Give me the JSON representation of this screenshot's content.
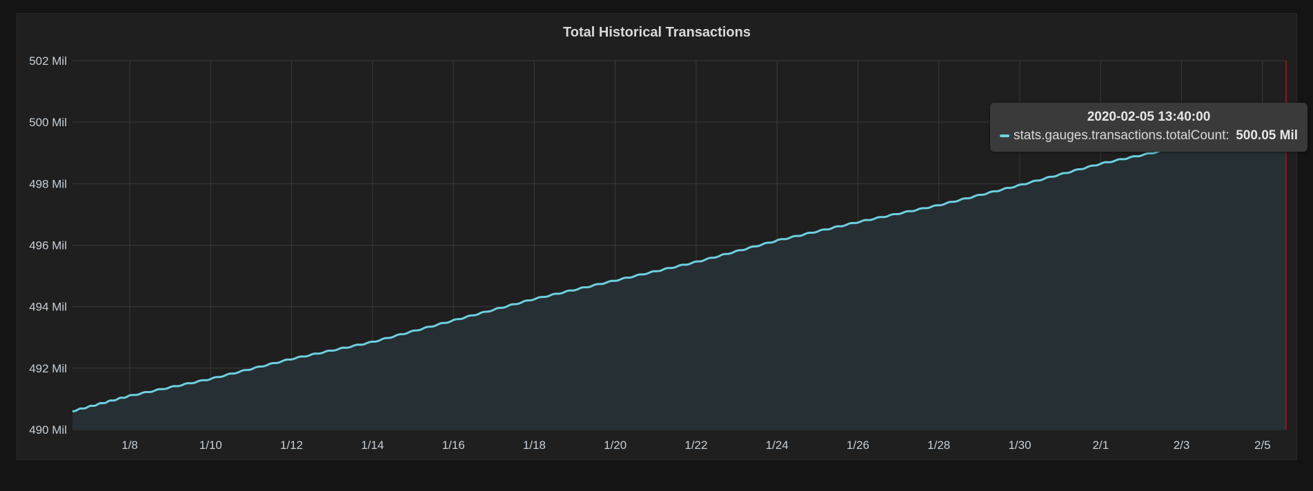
{
  "panel": {
    "title": "Total Historical Transactions"
  },
  "tooltip": {
    "time": "2020-02-05 13:40:00",
    "series": "stats.gauges.transactions.totalCount:",
    "value": "500.05 Mil"
  },
  "colors": {
    "series_line": "#6ed0e0",
    "series_fill": "#262f33",
    "grid": "#3a3a3a",
    "axis_text": "#c7d0d9",
    "time_marker": "#8b1a1a"
  },
  "chart_data": {
    "type": "area",
    "title": "Total Historical Transactions",
    "xlabel": "",
    "ylabel": "",
    "x_range": [
      "2020-01-06 14:00",
      "2020-02-05 14:00"
    ],
    "ylim": [
      490,
      502
    ],
    "y_unit": "Mil",
    "y_ticks": [
      490,
      492,
      494,
      496,
      498,
      500,
      502
    ],
    "y_tick_labels": [
      "490 Mil",
      "492 Mil",
      "494 Mil",
      "496 Mil",
      "498 Mil",
      "500 Mil",
      "502 Mil"
    ],
    "x_ticks": [
      "2020-01-08",
      "2020-01-10",
      "2020-01-12",
      "2020-01-14",
      "2020-01-16",
      "2020-01-18",
      "2020-01-20",
      "2020-01-22",
      "2020-01-24",
      "2020-01-26",
      "2020-01-28",
      "2020-01-30",
      "2020-02-01",
      "2020-02-03",
      "2020-02-05"
    ],
    "x_tick_labels": [
      "1/8",
      "1/10",
      "1/12",
      "1/14",
      "1/16",
      "1/18",
      "1/20",
      "1/22",
      "1/24",
      "1/26",
      "1/28",
      "1/30",
      "2/1",
      "2/3",
      "2/5"
    ],
    "grid": true,
    "legend": "none",
    "series": [
      {
        "name": "stats.gauges.transactions.totalCount",
        "x": [
          "2020-01-06 14:00",
          "2020-01-08",
          "2020-01-10",
          "2020-01-12",
          "2020-01-14",
          "2020-01-16",
          "2020-01-18",
          "2020-01-20",
          "2020-01-22",
          "2020-01-24",
          "2020-01-26",
          "2020-01-28",
          "2020-01-30",
          "2020-02-01",
          "2020-02-03",
          "2020-02-05 13:40"
        ],
        "values": [
          490.6,
          491.1,
          491.65,
          492.3,
          492.85,
          493.55,
          494.25,
          494.85,
          495.45,
          496.15,
          496.75,
          497.3,
          497.95,
          498.65,
          499.2,
          500.05
        ]
      }
    ]
  }
}
